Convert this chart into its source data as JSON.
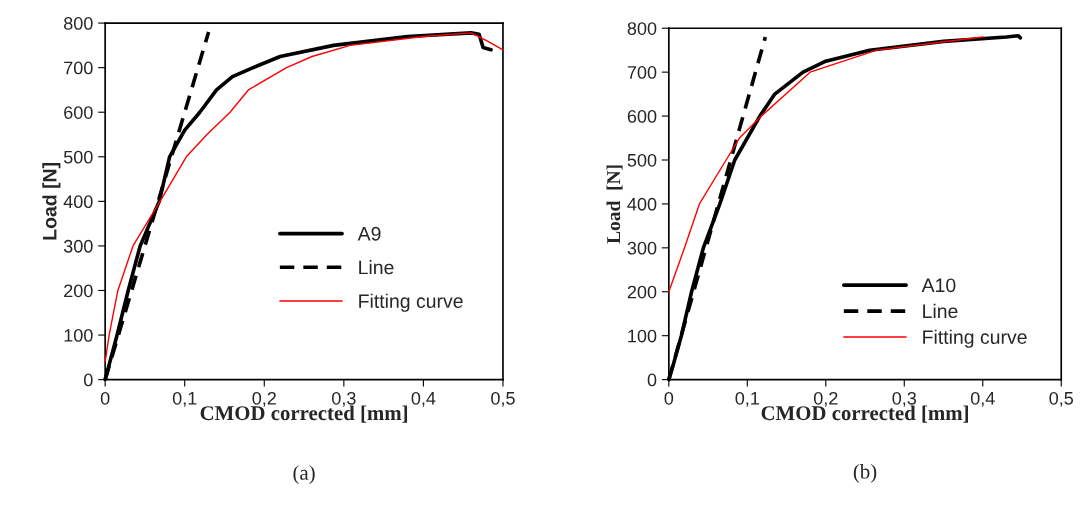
{
  "chart_data": [
    {
      "type": "line",
      "xlabel": "CMOD corrected [mm]",
      "ylabel": "Load [N]",
      "annotations": [
        "(a)"
      ],
      "xlim": [
        0,
        0.5
      ],
      "ylim": [
        0,
        800
      ],
      "xticks": [
        0,
        {
          "value": 0.1,
          "label": "0,1"
        },
        {
          "value": 0.2,
          "label": "0,2"
        },
        {
          "value": 0.3,
          "label": "0,3"
        },
        {
          "value": 0.4,
          "label": "0,4"
        },
        {
          "value": 0.5,
          "label": "0,5"
        }
      ],
      "yticks": [
        0,
        100,
        200,
        300,
        400,
        500,
        600,
        700,
        800
      ],
      "legend": "center right",
      "grid": false,
      "marker": "none",
      "series": [
        {
          "name": "A9",
          "color": "#000000",
          "line_style": "solid",
          "x": [
            0,
            0.015,
            0.029,
            0.044,
            0.068,
            0.081,
            0.1,
            0.119,
            0.14,
            0.16,
            0.186,
            0.22,
            0.287,
            0.38,
            0.46,
            0.47,
            0.475,
            0.485
          ],
          "values": [
            0,
            100,
            200,
            300,
            400,
            500,
            560,
            600,
            650,
            680,
            700,
            725,
            750,
            770,
            778,
            775,
            745,
            740
          ]
        },
        {
          "name": "Line",
          "color": "#000000",
          "line_style": "dashed",
          "x": [
            0,
            0.13
          ],
          "values": [
            0,
            780
          ]
        },
        {
          "name": "Fitting curve",
          "color": "#ff0000",
          "line_style": "solid",
          "x": [
            0,
            0.005,
            0.016,
            0.035,
            0.069,
            0.102,
            0.128,
            0.157,
            0.18,
            0.228,
            0.26,
            0.308,
            0.4,
            0.46,
            0.48,
            0.5
          ],
          "values": [
            40,
            100,
            200,
            300,
            400,
            500,
            550,
            600,
            650,
            700,
            725,
            750,
            770,
            778,
            760,
            740
          ]
        }
      ]
    },
    {
      "type": "line",
      "xlabel": "CMOD corrected [mm]",
      "ylabel": "Load  [N]",
      "annotations": [
        "(b)"
      ],
      "xlim": [
        0,
        0.5
      ],
      "ylim": [
        0,
        800
      ],
      "xticks": [
        0,
        {
          "value": 0.1,
          "label": "0,1"
        },
        {
          "value": 0.2,
          "label": "0,2"
        },
        {
          "value": 0.3,
          "label": "0,3"
        },
        {
          "value": 0.4,
          "label": "0,4"
        },
        {
          "value": 0.5,
          "label": "0,5"
        }
      ],
      "yticks": [
        0,
        100,
        200,
        300,
        400,
        500,
        600,
        700,
        800
      ],
      "legend": "lower right",
      "grid": false,
      "marker": "none",
      "series": [
        {
          "name": "A10",
          "color": "#000000",
          "line_style": "solid",
          "x": [
            0,
            0.005,
            0.016,
            0.029,
            0.044,
            0.065,
            0.084,
            0.116,
            0.135,
            0.171,
            0.2,
            0.256,
            0.35,
            0.43,
            0.445,
            0.448
          ],
          "values": [
            0,
            30,
            100,
            200,
            300,
            400,
            500,
            600,
            650,
            700,
            725,
            750,
            770,
            780,
            783,
            778
          ]
        },
        {
          "name": "Line",
          "color": "#000000",
          "line_style": "dashed",
          "x": [
            0,
            0.123
          ],
          "values": [
            0,
            780
          ]
        },
        {
          "name": "Fitting curve",
          "color": "#ff0000",
          "line_style": "solid",
          "x": [
            0,
            0.02,
            0.039,
            0.073,
            0.09,
            0.118,
            0.18,
            0.265,
            0.4
          ],
          "values": [
            200,
            300,
            400,
            500,
            550,
            600,
            700,
            750,
            780
          ]
        }
      ]
    }
  ]
}
